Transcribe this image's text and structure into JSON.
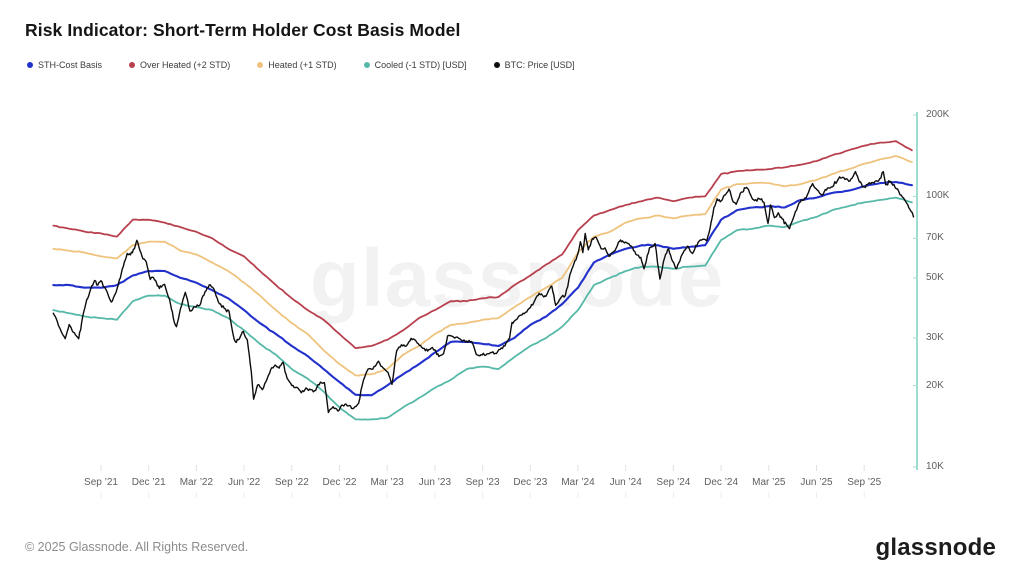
{
  "header": {
    "title": "Risk Indicator: Short-Term Holder Cost Basis Model"
  },
  "legend": {
    "items": [
      {
        "label": "STH-Cost Basis",
        "color": "#2231cc"
      },
      {
        "label": "Over Heated (+2 STD)",
        "color": "#b8404e"
      },
      {
        "label": "Heated (+1 STD)",
        "color": "#efc37e"
      },
      {
        "label": "Cooled (-1 STD) [USD]",
        "color": "#56b9a8"
      },
      {
        "label": "BTC: Price [USD]",
        "color": "#0d0d0d"
      }
    ]
  },
  "chart_data": {
    "type": "line",
    "y_scale": "log",
    "y_unit": "USD (thousands)",
    "x_start_month": "Jun 2021",
    "x_end_month": "Nov 2025",
    "grid": "off",
    "legend_position": "top-left",
    "y_axis_line_color": "#7fd0c2",
    "y_ticks": [
      {
        "label": "200K",
        "value": 200
      },
      {
        "label": "100K",
        "value": 100
      },
      {
        "label": "70K",
        "value": 70
      },
      {
        "label": "50K",
        "value": 50
      },
      {
        "label": "30K",
        "value": 30
      },
      {
        "label": "20K",
        "value": 20
      },
      {
        "label": "10K",
        "value": 10
      }
    ],
    "x_ticks": [
      {
        "label": "Sep ’21",
        "month_index": 3
      },
      {
        "label": "Dec ’21",
        "month_index": 6
      },
      {
        "label": "Mar ’22",
        "month_index": 9
      },
      {
        "label": "Jun ’22",
        "month_index": 12
      },
      {
        "label": "Sep ’22",
        "month_index": 15
      },
      {
        "label": "Dec ’22",
        "month_index": 18
      },
      {
        "label": "Mar ’23",
        "month_index": 21
      },
      {
        "label": "Jun ’23",
        "month_index": 24
      },
      {
        "label": "Sep ’23",
        "month_index": 27
      },
      {
        "label": "Dec ’23",
        "month_index": 30
      },
      {
        "label": "Mar ’24",
        "month_index": 33
      },
      {
        "label": "Jun ’24",
        "month_index": 36
      },
      {
        "label": "Sep ’24",
        "month_index": 39
      },
      {
        "label": "Dec ’24",
        "month_index": 42
      },
      {
        "label": "Mar ’25",
        "month_index": 45
      },
      {
        "label": "Jun ’25",
        "month_index": 48
      },
      {
        "label": "Sep ’25",
        "month_index": 51
      }
    ],
    "series": [
      {
        "name": "Over Heated (+2 STD)",
        "color": "#b8404e",
        "width": 1.8,
        "monthly_values_kusd": [
          78,
          76,
          74,
          73,
          71,
          82,
          82,
          80,
          77,
          74,
          70,
          64,
          60,
          53,
          47,
          42,
          38,
          35,
          31,
          27.5,
          28,
          29.5,
          32,
          35.5,
          38,
          41,
          41,
          42,
          42.5,
          47,
          51,
          56,
          61,
          75,
          85,
          89,
          93,
          96,
          99,
          96,
          99,
          100,
          121,
          124,
          125,
          126,
          128,
          131,
          135,
          142,
          148,
          154,
          158,
          160,
          148
        ]
      },
      {
        "name": "Heated (+1 STD)",
        "color": "#efc37e",
        "width": 1.8,
        "monthly_values_kusd": [
          64,
          63,
          62,
          60,
          59,
          66,
          68,
          68,
          63,
          61,
          57,
          53,
          48,
          43,
          38,
          34,
          31,
          27,
          24,
          21.8,
          22,
          23,
          26,
          28,
          31,
          33.5,
          34,
          35,
          35.5,
          39,
          42.5,
          46,
          50,
          62,
          71,
          74,
          80,
          83,
          85,
          83,
          85,
          86,
          106,
          111,
          112,
          112,
          109,
          111,
          115,
          121,
          126,
          132,
          137,
          141,
          134
        ]
      },
      {
        "name": "Cooled (-1 STD) [USD]",
        "color": "#56b9a8",
        "width": 1.8,
        "monthly_values_kusd": [
          38,
          37,
          36,
          35.5,
          35,
          41,
          43,
          43,
          40,
          39,
          38,
          35.5,
          32,
          28.5,
          26,
          23,
          21.2,
          19,
          16.6,
          15,
          15,
          15.2,
          16.6,
          18,
          19.6,
          21,
          23,
          23.5,
          23,
          25.5,
          28,
          30,
          33,
          38,
          47,
          50,
          53,
          55,
          55,
          54,
          55,
          55.5,
          69,
          75,
          76,
          78,
          77,
          81,
          84,
          89,
          92,
          95,
          97,
          99,
          95
        ]
      },
      {
        "name": "STH-Cost Basis",
        "color": "#2231cc",
        "width": 2.1,
        "monthly_values_kusd": [
          47,
          47,
          46,
          46,
          47,
          51,
          53,
          53,
          50,
          48,
          45,
          42,
          38,
          34,
          31,
          28,
          25.7,
          23,
          20.6,
          18.5,
          18.4,
          20,
          22,
          24,
          26.5,
          29,
          29,
          28.5,
          28,
          30,
          33.5,
          36,
          40,
          46,
          57,
          61,
          64,
          66,
          66,
          64,
          65,
          66,
          82,
          89,
          91,
          92,
          91,
          97,
          99,
          103,
          105,
          109,
          112,
          113,
          110
        ]
      }
    ],
    "btc_price": {
      "name": "BTC: Price [USD]",
      "color": "#0d0d0d",
      "width": 1.4,
      "points_month_kusd": [
        [
          0,
          37
        ],
        [
          0.25,
          34.5
        ],
        [
          0.55,
          31.2
        ],
        [
          0.75,
          29.8
        ],
        [
          1,
          33.6
        ],
        [
          1.25,
          31.5
        ],
        [
          1.6,
          29.8
        ],
        [
          1.85,
          36
        ],
        [
          2.1,
          41.5
        ],
        [
          2.35,
          45.5
        ],
        [
          2.6,
          48.9
        ],
        [
          2.8,
          47
        ],
        [
          3,
          48.8
        ],
        [
          3.35,
          44.8
        ],
        [
          3.65,
          40.7
        ],
        [
          3.9,
          43.6
        ],
        [
          4.15,
          49.2
        ],
        [
          4.4,
          55
        ],
        [
          4.65,
          61.5
        ],
        [
          4.85,
          60.8
        ],
        [
          5.1,
          64
        ],
        [
          5.25,
          68.8
        ],
        [
          5.45,
          63
        ],
        [
          5.65,
          58.7
        ],
        [
          5.85,
          57.2
        ],
        [
          6.1,
          49.3
        ],
        [
          6.3,
          50.1
        ],
        [
          6.55,
          46.7
        ],
        [
          6.8,
          46.2
        ],
        [
          7,
          47.3
        ],
        [
          7.3,
          41.8
        ],
        [
          7.55,
          35.5
        ],
        [
          7.75,
          33
        ],
        [
          8,
          38.5
        ],
        [
          8.3,
          44.2
        ],
        [
          8.6,
          37.7
        ],
        [
          8.9,
          39.1
        ],
        [
          9.2,
          39.5
        ],
        [
          9.55,
          44.5
        ],
        [
          9.8,
          47.1
        ],
        [
          10.1,
          45.5
        ],
        [
          10.45,
          40.1
        ],
        [
          10.75,
          38.6
        ],
        [
          11.05,
          37.7
        ],
        [
          11.3,
          31
        ],
        [
          11.45,
          29
        ],
        [
          11.7,
          29.7
        ],
        [
          11.95,
          31.7
        ],
        [
          12.2,
          29.5
        ],
        [
          12.45,
          22.5
        ],
        [
          12.6,
          17.8
        ],
        [
          12.85,
          20.1
        ],
        [
          13.15,
          19.3
        ],
        [
          13.45,
          21.2
        ],
        [
          13.75,
          23.3
        ],
        [
          13.95,
          23.8
        ],
        [
          14.2,
          23.2
        ],
        [
          14.45,
          24.4
        ],
        [
          14.7,
          21.3
        ],
        [
          15,
          20
        ],
        [
          15.3,
          19.7
        ],
        [
          15.6,
          18.8
        ],
        [
          15.9,
          19.6
        ],
        [
          16.2,
          19.3
        ],
        [
          16.5,
          19.2
        ],
        [
          16.8,
          20.6
        ],
        [
          17.05,
          20.5
        ],
        [
          17.3,
          15.9
        ],
        [
          17.6,
          16.7
        ],
        [
          17.9,
          16.1
        ],
        [
          18.2,
          16.9
        ],
        [
          18.55,
          16.8
        ],
        [
          18.9,
          16.5
        ],
        [
          19.2,
          17.2
        ],
        [
          19.5,
          20.9
        ],
        [
          19.8,
          23
        ],
        [
          20.1,
          23
        ],
        [
          20.45,
          24.6
        ],
        [
          20.75,
          23.2
        ],
        [
          21.05,
          22.4
        ],
        [
          21.3,
          20.2
        ],
        [
          21.6,
          26.9
        ],
        [
          21.9,
          28.3
        ],
        [
          22.2,
          28
        ],
        [
          22.5,
          29.9
        ],
        [
          22.8,
          29.3
        ],
        [
          23.1,
          28.1
        ],
        [
          23.4,
          26.9
        ],
        [
          23.7,
          27.2
        ],
        [
          24,
          27.1
        ],
        [
          24.25,
          25.6
        ],
        [
          24.55,
          26.3
        ],
        [
          24.8,
          30.5
        ],
        [
          25.1,
          30.4
        ],
        [
          25.4,
          30.2
        ],
        [
          25.7,
          29.2
        ],
        [
          26,
          29.2
        ],
        [
          26.3,
          29.1
        ],
        [
          26.6,
          26.1
        ],
        [
          26.9,
          26
        ],
        [
          27.2,
          25.9
        ],
        [
          27.5,
          26.5
        ],
        [
          27.8,
          26.3
        ],
        [
          28.1,
          27.2
        ],
        [
          28.4,
          28
        ],
        [
          28.7,
          30
        ],
        [
          28.85,
          34.2
        ],
        [
          29.1,
          35
        ],
        [
          29.4,
          36.4
        ],
        [
          29.7,
          37.3
        ],
        [
          30,
          38.8
        ],
        [
          30.3,
          41.5
        ],
        [
          30.55,
          43.8
        ],
        [
          30.85,
          42.5
        ],
        [
          31.1,
          44.2
        ],
        [
          31.35,
          46.6
        ],
        [
          31.6,
          39.6
        ],
        [
          31.9,
          42
        ],
        [
          32.2,
          43
        ],
        [
          32.5,
          51.5
        ],
        [
          32.75,
          56.5
        ],
        [
          33,
          61.5
        ],
        [
          33.15,
          68
        ],
        [
          33.3,
          62
        ],
        [
          33.45,
          73
        ],
        [
          33.65,
          63.5
        ],
        [
          33.9,
          69.8
        ],
        [
          34.15,
          70.5
        ],
        [
          34.45,
          64
        ],
        [
          34.7,
          64.5
        ],
        [
          34.95,
          60
        ],
        [
          35.25,
          62.5
        ],
        [
          35.55,
          67.8
        ],
        [
          35.8,
          68.5
        ],
        [
          36.05,
          67.5
        ],
        [
          36.35,
          65.5
        ],
        [
          36.65,
          61
        ],
        [
          36.95,
          59.5
        ],
        [
          37.15,
          54
        ],
        [
          37.5,
          64.5
        ],
        [
          37.85,
          67
        ],
        [
          38.15,
          49.5
        ],
        [
          38.45,
          59.5
        ],
        [
          38.7,
          64
        ],
        [
          38.95,
          57.5
        ],
        [
          39.2,
          54
        ],
        [
          39.55,
          61
        ],
        [
          39.9,
          65.5
        ],
        [
          40.2,
          61.5
        ],
        [
          40.55,
          67.5
        ],
        [
          40.85,
          69.5
        ],
        [
          41.1,
          68.5
        ],
        [
          41.3,
          76
        ],
        [
          41.55,
          91
        ],
        [
          41.75,
          98
        ],
        [
          41.95,
          95.5
        ],
        [
          42.2,
          101
        ],
        [
          42.5,
          106.5
        ],
        [
          42.7,
          97.5
        ],
        [
          42.95,
          93.5
        ],
        [
          43.2,
          102.5
        ],
        [
          43.6,
          108
        ],
        [
          43.85,
          101.5
        ],
        [
          44.1,
          96.5
        ],
        [
          44.4,
          98
        ],
        [
          44.7,
          95
        ],
        [
          44.95,
          79.5
        ],
        [
          45.1,
          93
        ],
        [
          45.35,
          83.5
        ],
        [
          45.6,
          87
        ],
        [
          45.85,
          82.5
        ],
        [
          46.1,
          79
        ],
        [
          46.3,
          76
        ],
        [
          46.6,
          85
        ],
        [
          46.9,
          94.5
        ],
        [
          47.2,
          97
        ],
        [
          47.5,
          103.5
        ],
        [
          47.75,
          111.5
        ],
        [
          48.05,
          105.5
        ],
        [
          48.35,
          101
        ],
        [
          48.7,
          107.5
        ],
        [
          49,
          108.5
        ],
        [
          49.45,
          118
        ],
        [
          49.8,
          115.5
        ],
        [
          50.1,
          114
        ],
        [
          50.45,
          123.5
        ],
        [
          50.7,
          113
        ],
        [
          50.95,
          108.5
        ],
        [
          51.2,
          110.5
        ],
        [
          51.55,
          112.5
        ],
        [
          51.9,
          114
        ],
        [
          52.2,
          123.5
        ],
        [
          52.35,
          110.5
        ],
        [
          52.6,
          113.5
        ],
        [
          52.8,
          110
        ],
        [
          53.1,
          106.5
        ],
        [
          53.4,
          99.5
        ],
        [
          53.6,
          96
        ],
        [
          53.8,
          91
        ],
        [
          53.95,
          88
        ],
        [
          54.1,
          84
        ]
      ]
    }
  },
  "watermark": {
    "text": "glassnode"
  },
  "footer": {
    "copyright": "© 2025 Glassnode. All Rights Reserved.",
    "logo_text": "glassnode"
  }
}
